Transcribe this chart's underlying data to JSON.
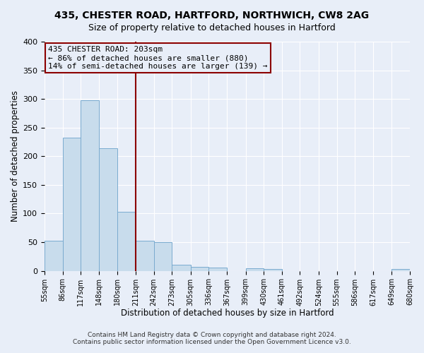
{
  "title": "435, CHESTER ROAD, HARTFORD, NORTHWICH, CW8 2AG",
  "subtitle": "Size of property relative to detached houses in Hartford",
  "xlabel": "Distribution of detached houses by size in Hartford",
  "ylabel": "Number of detached properties",
  "bar_color": "#c8dcec",
  "bar_edge_color": "#7aabcf",
  "background_color": "#e8eef8",
  "grid_color": "#ffffff",
  "vline_x_bin": 5,
  "vline_color": "#8b0000",
  "annotation_title": "435 CHESTER ROAD: 203sqm",
  "annotation_line2": "← 86% of detached houses are smaller (880)",
  "annotation_line3": "14% of semi-detached houses are larger (139) →",
  "annotation_box_color": "#8b0000",
  "bin_edges": [
    55,
    86,
    117,
    148,
    180,
    211,
    242,
    273,
    305,
    336,
    367,
    399,
    430,
    461,
    492,
    524,
    555,
    586,
    617,
    649,
    680
  ],
  "bin_labels": [
    "55sqm",
    "86sqm",
    "117sqm",
    "148sqm",
    "180sqm",
    "211sqm",
    "242sqm",
    "273sqm",
    "305sqm",
    "336sqm",
    "367sqm",
    "399sqm",
    "430sqm",
    "461sqm",
    "492sqm",
    "524sqm",
    "555sqm",
    "586sqm",
    "617sqm",
    "649sqm",
    "680sqm"
  ],
  "bar_heights": [
    53,
    233,
    298,
    214,
    103,
    52,
    50,
    10,
    7,
    6,
    0,
    5,
    3,
    0,
    0,
    0,
    0,
    0,
    0,
    3
  ],
  "ylim": [
    0,
    400
  ],
  "yticks": [
    0,
    50,
    100,
    150,
    200,
    250,
    300,
    350,
    400
  ],
  "footer_line1": "Contains HM Land Registry data © Crown copyright and database right 2024.",
  "footer_line2": "Contains public sector information licensed under the Open Government Licence v3.0."
}
